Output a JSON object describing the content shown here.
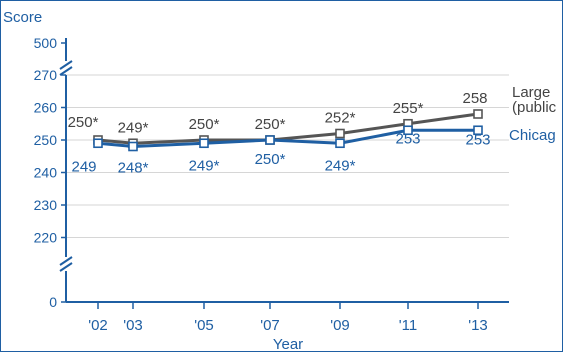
{
  "chart_data": {
    "type": "line",
    "ylabel": "Score",
    "xlabel": "Year",
    "x": [
      "'02",
      "'03",
      "'05",
      "'07",
      "'09",
      "'11",
      "'13"
    ],
    "y_ticks": [
      0,
      220,
      230,
      240,
      250,
      260,
      270,
      500
    ],
    "y_break": true,
    "series": [
      {
        "name": "Large city (public)",
        "legend_lines": [
          "Large",
          "(public"
        ],
        "color": "#555555",
        "values": [
          250,
          249,
          250,
          250,
          252,
          255,
          258
        ],
        "labels": [
          "250*",
          "249*",
          "250*",
          "250*",
          "252*",
          "255*",
          "258"
        ]
      },
      {
        "name": "Chicago",
        "legend_lines": [
          "Chicag"
        ],
        "color": "#1f5fa3",
        "values": [
          249,
          248,
          249,
          250,
          249,
          253,
          253
        ],
        "labels": [
          "249",
          "248*",
          "249*",
          "250*",
          "249*",
          "253",
          "253"
        ]
      }
    ],
    "grid": "horizontal"
  }
}
